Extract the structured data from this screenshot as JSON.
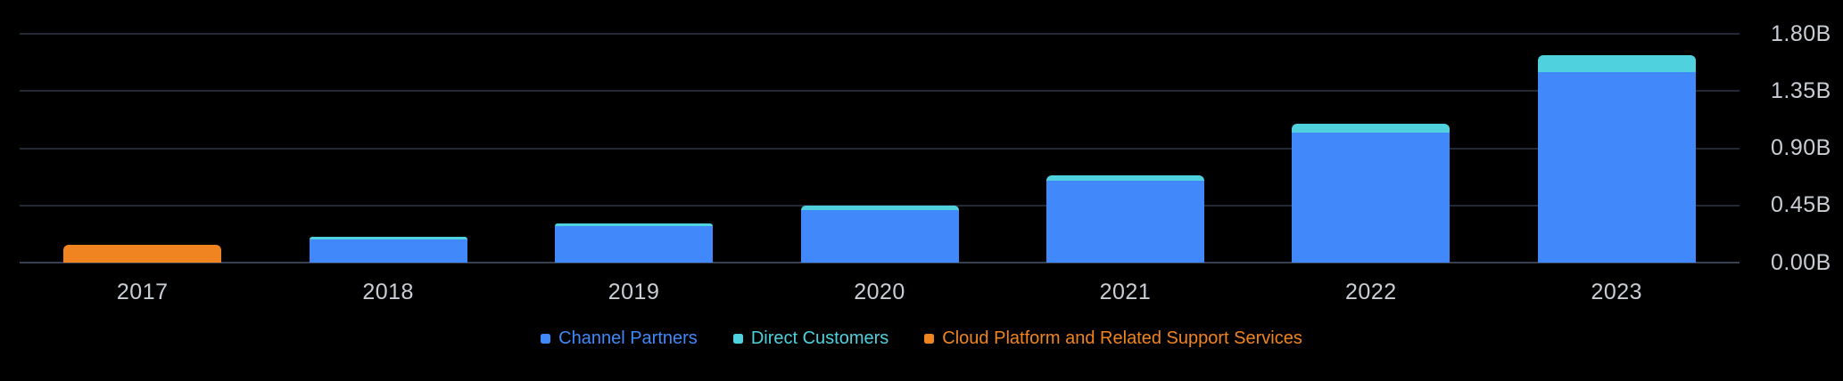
{
  "chart_data": {
    "type": "bar",
    "stacked": true,
    "title": "",
    "xlabel": "",
    "ylabel": "",
    "unit": "billions (B)",
    "categories": [
      "2017",
      "2018",
      "2019",
      "2020",
      "2021",
      "2022",
      "2023"
    ],
    "series": [
      {
        "name": "Channel Partners",
        "color": "#4189fb",
        "values": [
          0,
          0.185,
          0.29,
          0.415,
          0.645,
          1.025,
          1.5
        ]
      },
      {
        "name": "Direct Customers",
        "color": "#4fd1de",
        "values": [
          0,
          0.02,
          0.02,
          0.03,
          0.04,
          0.07,
          0.135
        ]
      },
      {
        "name": "Cloud Platform and Related Support Services",
        "color": "#f08421",
        "values": [
          0.14,
          0,
          0,
          0,
          0,
          0,
          0
        ]
      }
    ],
    "totals_by_year": [
      0.14,
      0.205,
      0.31,
      0.445,
      0.685,
      1.095,
      1.635
    ],
    "ylim": [
      0,
      1.8
    ],
    "y_ticks": [
      {
        "label": "1.80B",
        "value": 1.8
      },
      {
        "label": "1.35B",
        "value": 1.35
      },
      {
        "label": "0.90B",
        "value": 0.9
      },
      {
        "label": "0.45B",
        "value": 0.45
      },
      {
        "label": "0.00B",
        "value": 0.0
      }
    ],
    "grid": true,
    "legend_position": "bottom",
    "colors": {
      "background": "#000000",
      "gridline": "#242a35",
      "zero_line": "#3a4150",
      "axis_text": "#c9ced5"
    }
  }
}
